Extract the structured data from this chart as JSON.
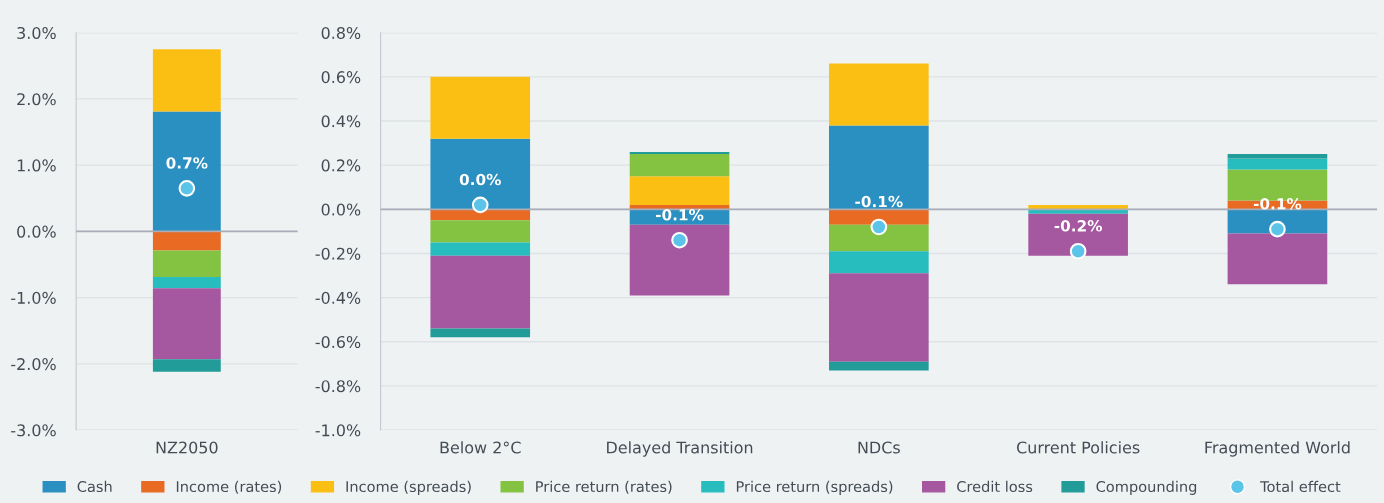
{
  "chart_data": [
    {
      "type": "bar",
      "stacked": true,
      "categories": [
        "NZ2050"
      ],
      "ylim": [
        -3,
        3
      ],
      "yticks": [
        {
          "value": -3,
          "label": "-3.0%"
        },
        {
          "value": -2,
          "label": "-2.0%"
        },
        {
          "value": -1,
          "label": "-1.0%"
        },
        {
          "value": 0,
          "label": "0.0%"
        },
        {
          "value": 1,
          "label": "1.0%"
        },
        {
          "value": 2,
          "label": "2.0%"
        },
        {
          "value": 3,
          "label": "3.0%"
        }
      ],
      "grid": "y",
      "legend": "bottom",
      "series": [
        {
          "name": "Cash",
          "color": "#2a8fc1",
          "values": [
            1.81
          ]
        },
        {
          "name": "Income (rates)",
          "color": "#e86a23",
          "values": [
            -0.29
          ]
        },
        {
          "name": "Income (spreads)",
          "color": "#fbbf14",
          "values": [
            0.94
          ]
        },
        {
          "name": "Price return (rates)",
          "color": "#84c241",
          "values": [
            -0.4
          ]
        },
        {
          "name": "Price return (spreads)",
          "color": "#27bdbf",
          "values": [
            -0.17
          ]
        },
        {
          "name": "Credit loss",
          "color": "#a558a0",
          "values": [
            -1.07
          ]
        },
        {
          "name": "Compounding",
          "color": "#229c98",
          "values": [
            -0.19
          ]
        },
        {
          "name": "Total effect",
          "type": "scatter",
          "marker": "circle",
          "color": "#5bc4e8",
          "values": [
            0.65
          ],
          "value_labels": [
            "0.7%"
          ]
        }
      ]
    },
    {
      "type": "bar",
      "stacked": true,
      "categories": [
        "Below 2°C",
        "Delayed Transition",
        "NDCs",
        "Current Policies",
        "Fragmented World"
      ],
      "ylim": [
        -1,
        0.8
      ],
      "yticks": [
        {
          "value": -1,
          "label": "-1.0%"
        },
        {
          "value": -0.8,
          "label": "-0.8%"
        },
        {
          "value": -0.6,
          "label": "-0.6%"
        },
        {
          "value": -0.4,
          "label": "-0.4%"
        },
        {
          "value": -0.2,
          "label": "-0.2%"
        },
        {
          "value": 0,
          "label": "0.0%"
        },
        {
          "value": 0.2,
          "label": "0.2%"
        },
        {
          "value": 0.4,
          "label": "0.4%"
        },
        {
          "value": 0.6,
          "label": "0.6%"
        },
        {
          "value": 0.8,
          "label": "0.8%"
        }
      ],
      "grid": "y",
      "series": [
        {
          "color": "#2a8fc1",
          "values": [
            0.32,
            -0.07,
            0.38,
            null,
            -0.11
          ]
        },
        {
          "color": "#e86a23",
          "values": [
            -0.05,
            0.02,
            -0.07,
            null,
            0.04
          ]
        },
        {
          "color": "#fbbf14",
          "values": [
            0.28,
            0.13,
            0.28,
            0.02,
            null
          ]
        },
        {
          "color": "#84c241",
          "values": [
            -0.1,
            0.1,
            -0.12,
            null,
            0.14
          ]
        },
        {
          "color": "#27bdbf",
          "values": [
            -0.06,
            null,
            -0.1,
            -0.02,
            0.05
          ]
        },
        {
          "color": "#a558a0",
          "values": [
            -0.33,
            -0.32,
            -0.4,
            -0.19,
            -0.23
          ]
        },
        {
          "color": "#229c98",
          "values": [
            -0.04,
            0.01,
            -0.04,
            null,
            0.02
          ]
        },
        {
          "type": "scatter",
          "marker": "circle",
          "color": "#5bc4e8",
          "values": [
            0.02,
            -0.14,
            -0.08,
            -0.19,
            -0.09
          ],
          "value_labels": [
            "0.0%",
            "-0.1%",
            "-0.1%",
            "-0.2%",
            "-0.1%"
          ]
        }
      ]
    }
  ]
}
